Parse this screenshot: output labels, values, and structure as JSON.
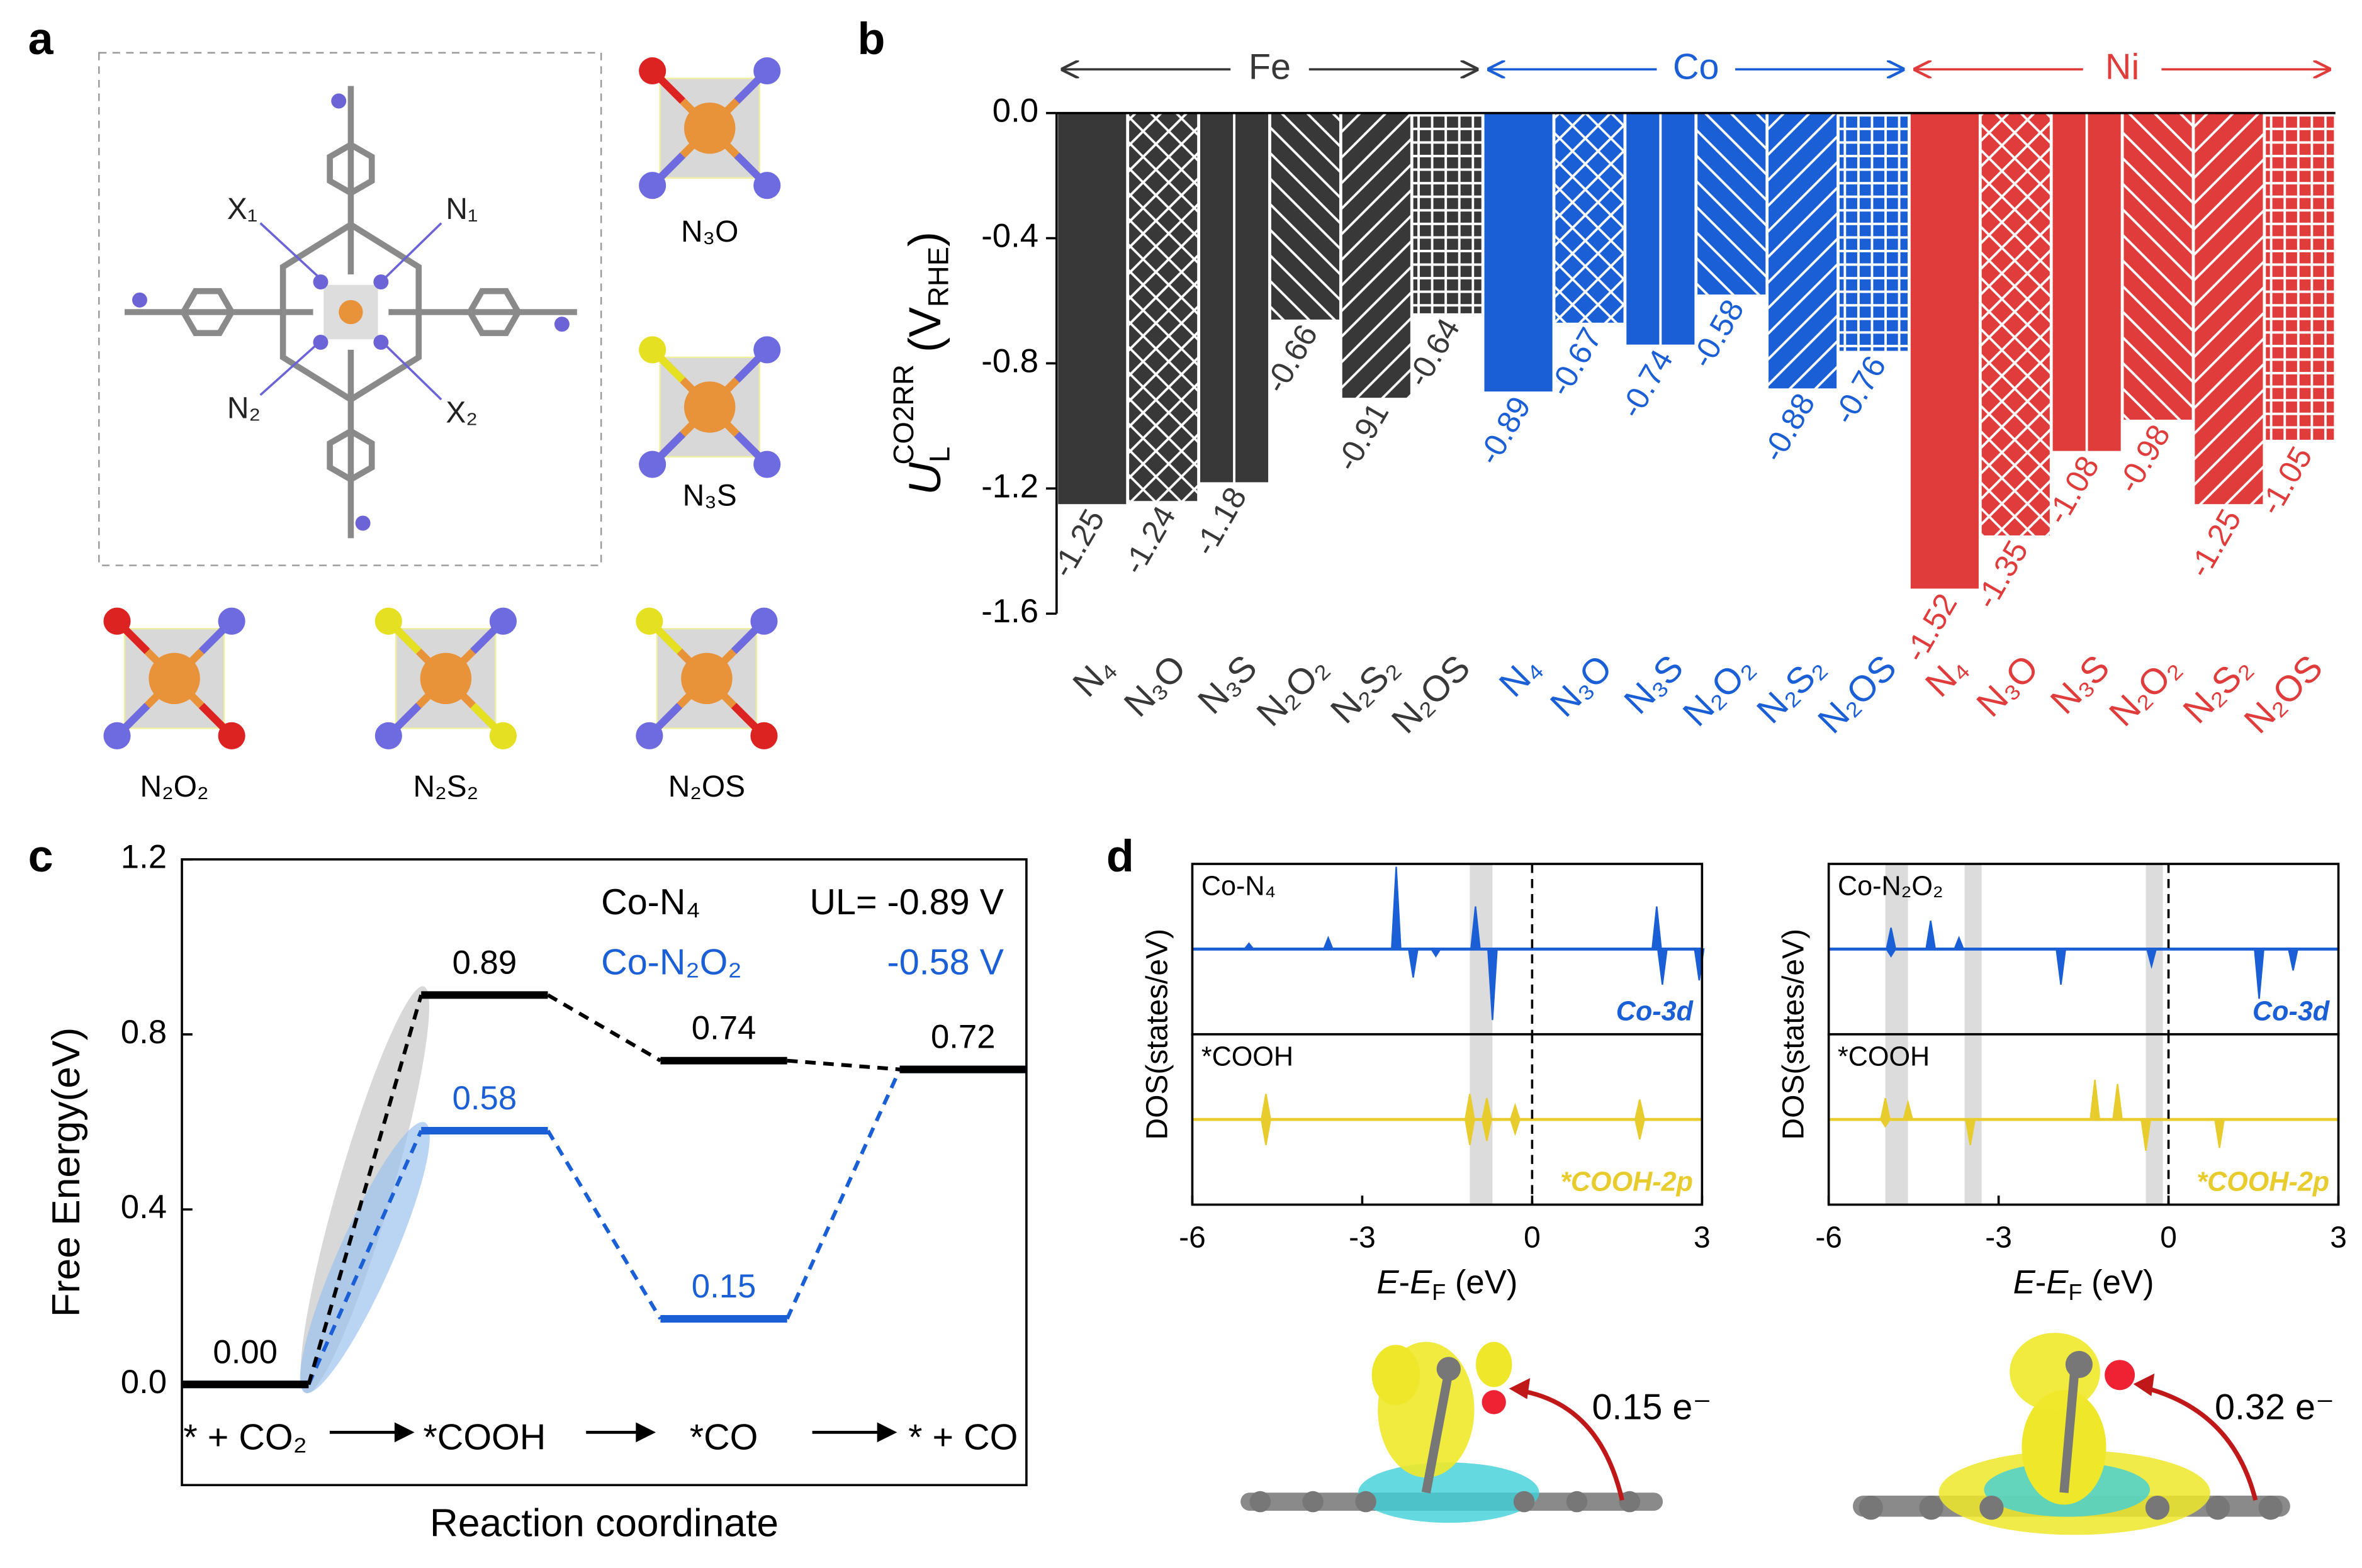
{
  "panel_labels": [
    "a",
    "b",
    "c",
    "d"
  ],
  "structures": {
    "atom_labels": [
      "X₁",
      "N₁",
      "N₂",
      "X₂"
    ],
    "motifs": [
      "N₃O",
      "N₃S",
      "N₂O₂",
      "N₂S₂",
      "N₂OS"
    ]
  },
  "chart_data": [
    {
      "type": "bar",
      "ylabel": [
        "U",
        "L",
        "CO2RR",
        "(V",
        "RHE",
        ")"
      ],
      "categories": [
        "N₄",
        "N₃O",
        "N₃S",
        "N₂O₂",
        "N₂S₂",
        "N₂OS"
      ],
      "patterns": [
        "solid",
        "cross",
        "vertical",
        "diag-left",
        "diag-right",
        "grid"
      ],
      "series": [
        {
          "name": "Fe",
          "color": "#383838",
          "values": [
            -1.25,
            -1.24,
            -1.18,
            -0.66,
            -0.91,
            -0.64
          ]
        },
        {
          "name": "Co",
          "color": "#1a5fd6",
          "values": [
            -0.89,
            -0.67,
            -0.74,
            -0.58,
            -0.88,
            -0.76
          ]
        },
        {
          "name": "Ni",
          "color": "#e03c3c",
          "values": [
            -1.52,
            -1.35,
            -1.08,
            -0.98,
            -1.25,
            -1.05
          ]
        }
      ],
      "ylim": [
        -1.6,
        0
      ],
      "yticks": [
        {
          "value": 0,
          "label": "0.0"
        },
        -0.4,
        -0.8,
        -1.2,
        -1.6
      ]
    },
    {
      "type": "energy",
      "ylabel": "Free Energy(eV)",
      "xlabel": "Reaction coordinate",
      "categories": [
        "* + CO₂",
        "*COOH",
        "*CO",
        "* + CO"
      ],
      "series": [
        {
          "name": "Co-N₄",
          "color": "#000000",
          "values": [
            0.0,
            0.89,
            0.74,
            0.72
          ],
          "value_labels": [
            "0.00",
            "0.89",
            "0.74",
            "0.72"
          ]
        },
        {
          "name": "Co-N₂O₂",
          "color": "#1a5fd6",
          "values": [
            0.0,
            0.58,
            0.15,
            0.72
          ],
          "value_labels": [
            null,
            "0.58",
            "0.15",
            null
          ]
        }
      ],
      "annotations": [
        "UL= -0.89 V",
        "-0.58 V"
      ],
      "ylim": [
        -0.23,
        1.2
      ],
      "yticks": [
        {
          "value": 0,
          "label": "0.0"
        },
        0.4,
        0.8,
        1.2
      ]
    },
    {
      "type": "dos",
      "ylabel": "DOS(states/eV)",
      "xlabel": [
        "E",
        "-",
        "E",
        "F",
        " (eV)"
      ],
      "xlim": [
        -6,
        3
      ],
      "xticks": [
        -6,
        -3,
        0,
        3
      ],
      "ylim": [
        -60,
        60
      ],
      "subplots": [
        {
          "title": "Co-N₄",
          "highlights": [
            [
              -1.1,
              -0.7
            ]
          ],
          "series": {
            "name": "Co-3d",
            "color": "#1a5fd6",
            "x": [
              -5.0,
              -3.6,
              -2.4,
              -2.1,
              -1.7,
              -1.0,
              -0.7,
              2.2,
              2.3,
              2.95
            ],
            "values": [
              4,
              8,
              58,
              -20,
              -5,
              30,
              -50,
              30,
              -25,
              -22
            ]
          }
        },
        {
          "title": "*COOH",
          "highlights": [
            [
              -1.1,
              -0.7
            ]
          ],
          "series": {
            "name": "*COOH-2p",
            "color": "#e8cc2e",
            "x": [
              -4.7,
              -4.7,
              -1.1,
              -1.1,
              -0.8,
              -0.8,
              -0.3,
              -0.3,
              1.9,
              1.9
            ],
            "values": [
              18,
              -18,
              18,
              -18,
              15,
              -15,
              10,
              -10,
              14,
              -14
            ]
          }
        }
      ]
    },
    {
      "type": "dos",
      "ylabel": "DOS(states/eV)",
      "xlabel": [
        "E",
        "-",
        "E",
        "F",
        " (eV)"
      ],
      "xlim": [
        -6,
        3
      ],
      "xticks": [
        -6,
        -3,
        0,
        3
      ],
      "ylim": [
        -60,
        60
      ],
      "subplots": [
        {
          "title": "Co-N₂O₂",
          "highlights": [
            [
              -5.0,
              -4.6
            ],
            [
              -3.6,
              -3.3
            ],
            [
              -0.4,
              -0.1
            ]
          ],
          "series": {
            "name": "Co-3d",
            "color": "#1a5fd6",
            "x": [
              -4.9,
              -4.9,
              -4.2,
              -3.7,
              -1.9,
              -0.3,
              1.6,
              2.2
            ],
            "values": [
              15,
              -5,
              20,
              8,
              -25,
              -12,
              -35,
              -15
            ]
          }
        },
        {
          "title": "*COOH",
          "highlights": [
            [
              -5.0,
              -4.6
            ],
            [
              -3.6,
              -3.3
            ],
            [
              -0.4,
              -0.1
            ]
          ],
          "series": {
            "name": "*COOH-2p",
            "color": "#e8cc2e",
            "x": [
              -5.0,
              -5.0,
              -4.6,
              -3.5,
              -1.3,
              -0.9,
              -0.4,
              0.9
            ],
            "values": [
              15,
              -5,
              12,
              -18,
              28,
              25,
              -22,
              -20
            ]
          }
        }
      ]
    }
  ],
  "charge_transfer": [
    "0.15 e⁻",
    "0.32 e⁻"
  ]
}
